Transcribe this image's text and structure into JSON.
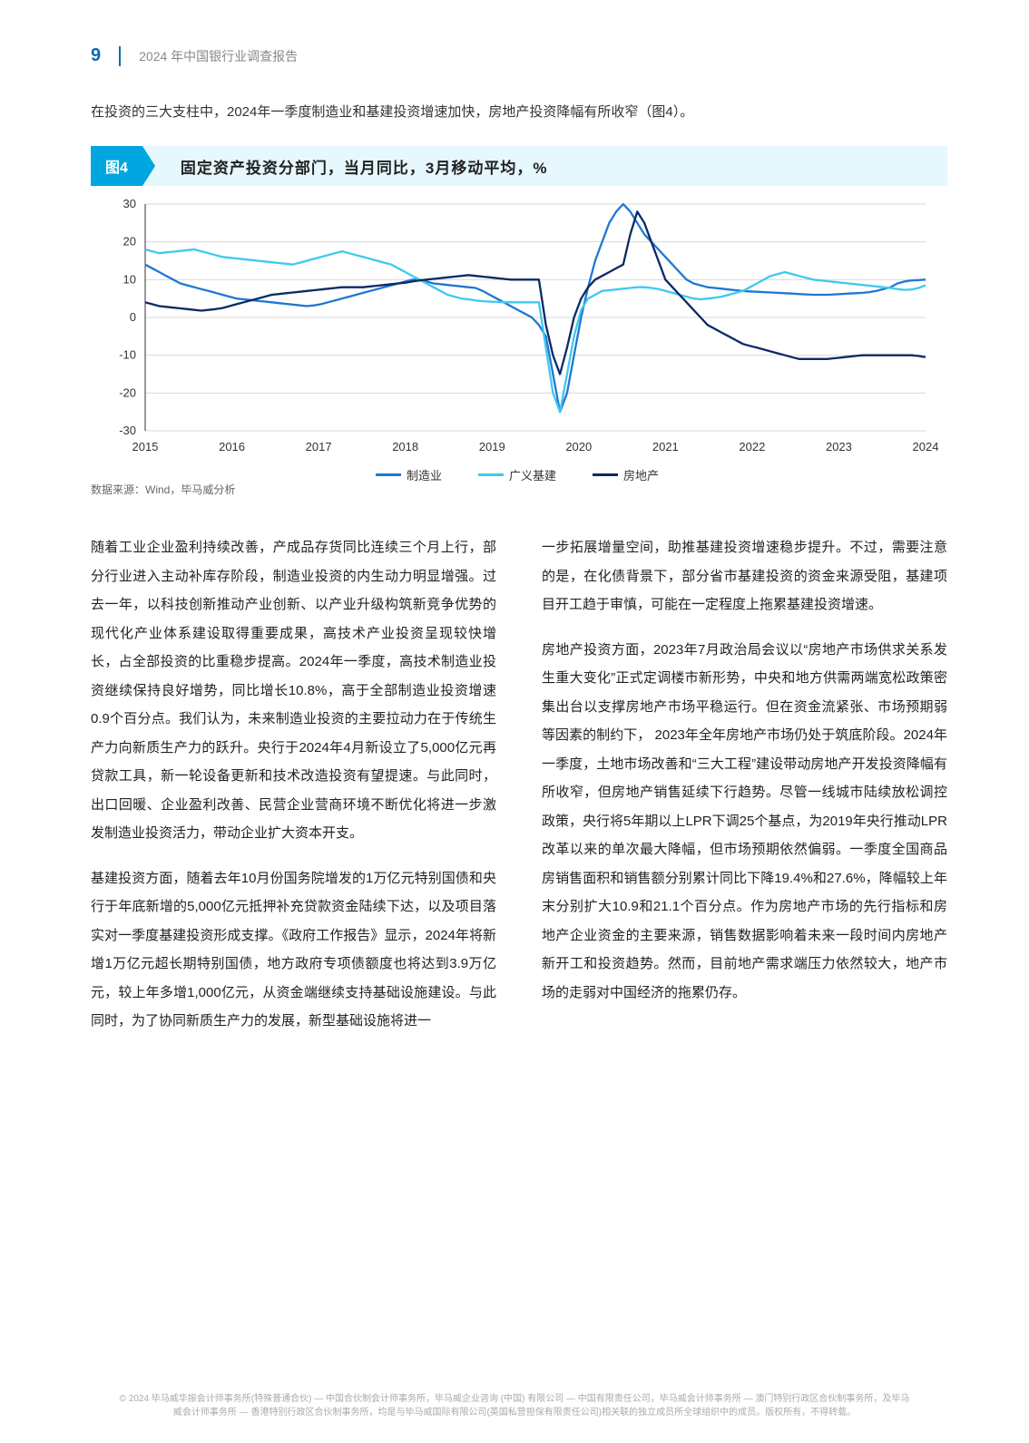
{
  "header": {
    "page_number": "9",
    "report_title": "2024 年中国银行业调查报告"
  },
  "intro": "在投资的三大支柱中，2024年一季度制造业和基建投资增速加快，房地产投资降幅有所收窄（图4）。",
  "figure": {
    "tag": "图4",
    "title": "固定资产投资分部门，当月同比，3月移动平均，%",
    "source": "数据来源：Wind，毕马威分析",
    "chart": {
      "type": "line",
      "background_color": "#ffffff",
      "grid_color": "#d9d9d9",
      "axis_color": "#333333",
      "axis_fontsize": 13,
      "ylim": [
        -30,
        30
      ],
      "ytick_step": 10,
      "yticks": [
        30,
        20,
        10,
        0,
        -10,
        -20,
        -30
      ],
      "x_categories": [
        "2015",
        "2016",
        "2017",
        "2018",
        "2019",
        "2020",
        "2021",
        "2022",
        "2023",
        "2024"
      ],
      "x_num_points": 112,
      "line_width": 2.3,
      "series": [
        {
          "name": "制造业",
          "color": "#1f77d4",
          "values": [
            14,
            13,
            12,
            11,
            10,
            9,
            8.5,
            8,
            7.5,
            7,
            6.5,
            6,
            5.5,
            5,
            4.8,
            4.6,
            4.4,
            4.2,
            4,
            3.8,
            3.6,
            3.4,
            3.2,
            3,
            3.2,
            3.5,
            4,
            4.5,
            5,
            5.5,
            6,
            6.5,
            7,
            7.5,
            8,
            8.5,
            9,
            9.5,
            10,
            10,
            9.5,
            9,
            8.8,
            8.6,
            8.4,
            8.2,
            8,
            7.8,
            7,
            6,
            5,
            4,
            3,
            2,
            1,
            0,
            -2,
            -5,
            -15,
            -25,
            -20,
            -10,
            0,
            8,
            15,
            20,
            25,
            28,
            30,
            28,
            25,
            22,
            20,
            18,
            16,
            14,
            12,
            10,
            9,
            8.5,
            8,
            7.8,
            7.6,
            7.4,
            7.2,
            7,
            6.9,
            6.8,
            6.7,
            6.6,
            6.5,
            6.4,
            6.3,
            6.2,
            6.1,
            6,
            6,
            6,
            6.1,
            6.2,
            6.3,
            6.4,
            6.5,
            6.7,
            7,
            7.5,
            8,
            9,
            9.5,
            9.8,
            9.9,
            10
          ]
        },
        {
          "name": "广义基建",
          "color": "#3ec9ef",
          "values": [
            18,
            17.5,
            17,
            17.2,
            17.4,
            17.6,
            17.8,
            18,
            17.5,
            17,
            16.5,
            16,
            15.8,
            15.6,
            15.4,
            15.2,
            15,
            14.8,
            14.6,
            14.4,
            14.2,
            14,
            14.5,
            15,
            15.5,
            16,
            16.5,
            17,
            17.5,
            17,
            16.5,
            16,
            15.5,
            15,
            14.5,
            14,
            13,
            12,
            11,
            10,
            9,
            8,
            7,
            6,
            5.5,
            5,
            4.8,
            4.5,
            4.3,
            4.2,
            4.1,
            4,
            4,
            4,
            4,
            4,
            4,
            -8,
            -20,
            -25,
            -15,
            -5,
            2,
            5,
            6,
            7,
            7.2,
            7.4,
            7.6,
            7.8,
            8,
            8,
            7.8,
            7.5,
            7,
            6.5,
            6,
            5.5,
            5,
            4.8,
            5,
            5.2,
            5.5,
            6,
            6.5,
            7,
            8,
            9,
            10,
            11,
            11.5,
            12,
            11.5,
            11,
            10.5,
            10,
            9.8,
            9.6,
            9.4,
            9.2,
            9,
            8.8,
            8.6,
            8.4,
            8.2,
            8,
            7.8,
            7.5,
            7.3,
            7.4,
            7.8,
            8.5
          ]
        },
        {
          "name": "房地产",
          "color": "#0a2a66",
          "values": [
            4,
            3.5,
            3,
            2.8,
            2.6,
            2.4,
            2.2,
            2,
            1.8,
            2,
            2.2,
            2.5,
            3,
            3.5,
            4,
            4.5,
            5,
            5.5,
            6,
            6.2,
            6.4,
            6.6,
            6.8,
            7,
            7.2,
            7.4,
            7.6,
            7.8,
            8,
            8,
            8,
            8,
            8.2,
            8.4,
            8.6,
            8.8,
            9,
            9.2,
            9.5,
            9.8,
            10,
            10.2,
            10.4,
            10.6,
            10.8,
            11,
            11.2,
            11,
            10.8,
            10.6,
            10.4,
            10.2,
            10,
            10,
            10,
            10,
            10,
            -2,
            -10,
            -15,
            -8,
            0,
            5,
            8,
            10,
            11,
            12,
            13,
            14,
            22,
            28,
            25,
            20,
            15,
            10,
            8,
            6,
            4,
            2,
            0,
            -2,
            -3,
            -4,
            -5,
            -6,
            -7,
            -7.5,
            -8,
            -8.5,
            -9,
            -9.5,
            -10,
            -10.5,
            -11,
            -11,
            -11,
            -11,
            -11,
            -10.8,
            -10.6,
            -10.4,
            -10.2,
            -10,
            -10,
            -10,
            -10,
            -10,
            -10,
            -10,
            -10,
            -10.2,
            -10.5
          ]
        }
      ],
      "legend": [
        {
          "label": "制造业",
          "color": "#1f77d4"
        },
        {
          "label": "广义基建",
          "color": "#3ec9ef"
        },
        {
          "label": "房地产",
          "color": "#0a2a66"
        }
      ]
    }
  },
  "body": {
    "left": [
      "随着工业企业盈利持续改善，产成品存货同比连续三个月上行，部分行业进入主动补库存阶段，制造业投资的内生动力明显增强。过去一年，以科技创新推动产业创新、以产业升级构筑新竞争优势的现代化产业体系建设取得重要成果，高技术产业投资呈现较快增长，占全部投资的比重稳步提高。2024年一季度，高技术制造业投资继续保持良好增势，同比增长10.8%，高于全部制造业投资增速0.9个百分点。我们认为，未来制造业投资的主要拉动力在于传统生产力向新质生产力的跃升。央行于2024年4月新设立了5,000亿元再贷款工具，新一轮设备更新和技术改造投资有望提速。与此同时，出口回暖、企业盈利改善、民营企业营商环境不断优化将进一步激发制造业投资活力，带动企业扩大资本开支。",
      "基建投资方面，随着去年10月份国务院增发的1万亿元特别国债和央行于年底新增的5,000亿元抵押补充贷款资金陆续下达，以及项目落实对一季度基建投资形成支撑。《政府工作报告》显示，2024年将新增1万亿元超长期特别国债，地方政府专项债额度也将达到3.9万亿元，较上年多增1,000亿元，从资金端继续支持基础设施建设。与此同时，为了协同新质生产力的发展，新型基础设施将进一"
    ],
    "right": [
      "一步拓展增量空间，助推基建投资增速稳步提升。不过，需要注意的是，在化债背景下，部分省市基建投资的资金来源受阻，基建项目开工趋于审慎，可能在一定程度上拖累基建投资增速。",
      "房地产投资方面，2023年7月政治局会议以“房地产市场供求关系发生重大变化”正式定调楼市新形势，中央和地方供需两端宽松政策密集出台以支撑房地产市场平稳运行。但在资金流紧张、市场预期弱等因素的制约下， 2023年全年房地产市场仍处于筑底阶段。2024年一季度，土地市场改善和“三大工程”建设带动房地产开发投资降幅有所收窄，但房地产销售延续下行趋势。尽管一线城市陆续放松调控政策，央行将5年期以上LPR下调25个基点，为2019年央行推动LPR改革以来的单次最大降幅，但市场预期依然偏弱。一季度全国商品房销售面积和销售额分别累计同比下降19.4%和27.6%，降幅较上年末分别扩大10.9和21.1个百分点。作为房地产市场的先行指标和房地产企业资金的主要来源，销售数据影响着未来一段时间内房地产新开工和投资趋势。然而，目前地产需求端压力依然较大，地产市场的走弱对中国经济的拖累仍存。"
    ]
  },
  "footer": "© 2024 毕马威华振会计师事务所(特殊普通合伙) — 中国合伙制会计师事务所，毕马威企业咨询 (中国) 有限公司 — 中国有限责任公司，毕马威会计师事务所 — 澳门特别行政区合伙制事务所，及毕马威会计师事务所 — 香港特别行政区合伙制事务所，均是与毕马威国际有限公司(英国私营担保有限责任公司)相关联的独立成员所全球组织中的成员。版权所有，不得转载。"
}
